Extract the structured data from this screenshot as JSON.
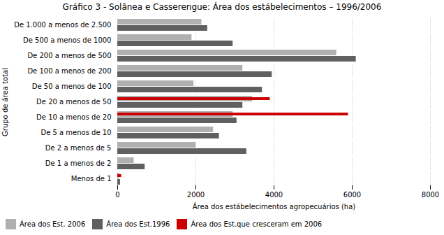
{
  "chart_data": {
    "type": "bar",
    "orientation": "horizontal",
    "title": "Gráfico 3 - Solânea e Casserengue: Área dos estábelecimentos  –  1996/2006",
    "xlabel": "Área dos estábelecimentos agropecuários (ha)",
    "ylabel": "Grupo de área total",
    "categories": [
      "De 1.000 a menos de 2.500",
      "De 500 a menos de 1000",
      "De 200 a menos de 500",
      "De 100 a menos de 200",
      "De 50 a menos de 100",
      "De 20 a menos de 50",
      "De 10 a menos de 20",
      "De 5 a menos de 10",
      "De 2 a menos de 5",
      "De 1 a menos de 2",
      "Menos de 1"
    ],
    "series": [
      {
        "name": "Área dos Est. 2006",
        "color": "#b0b0b0",
        "values": [
          2150,
          1900,
          5600,
          3200,
          1950,
          3450,
          2950,
          2450,
          2000,
          420,
          50
        ]
      },
      {
        "name": "Área dos Est.1996",
        "color": "#606060",
        "values": [
          2300,
          2950,
          6100,
          3950,
          3700,
          3200,
          3050,
          2600,
          3300,
          700,
          70
        ]
      },
      {
        "name": "Área dos Est.que cresceram em 2006",
        "color": "#cc0000",
        "values": [
          0,
          0,
          0,
          0,
          0,
          3900,
          5900,
          0,
          0,
          0,
          100
        ]
      }
    ],
    "xlim": [
      0,
      8000
    ],
    "xticks": [
      0,
      2000,
      4000,
      6000,
      8000
    ],
    "grid": true,
    "legend": "bottom"
  }
}
